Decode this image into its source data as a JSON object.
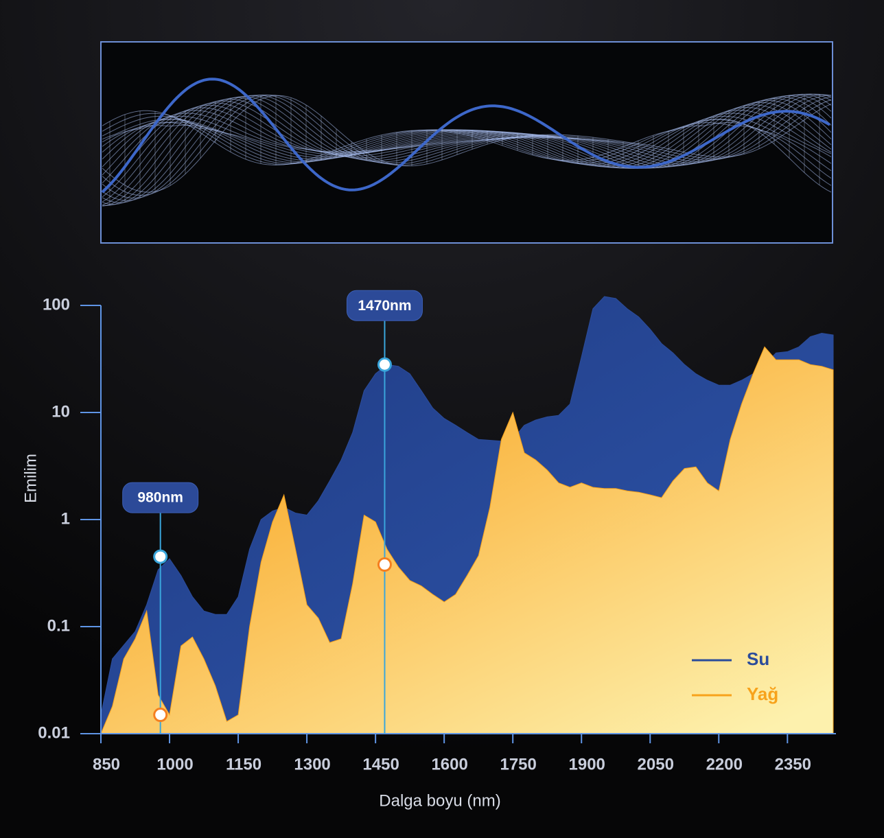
{
  "chart_data": {
    "type": "area",
    "y_label": "Emilim",
    "x_label": "Dalga boyu (nm)",
    "yscale": "log",
    "xlim": [
      850,
      2456
    ],
    "ylim": [
      0.01,
      100
    ],
    "xticks": [
      850,
      1000,
      1150,
      1300,
      1450,
      1600,
      1750,
      1900,
      2050,
      2200,
      2350
    ],
    "yticks": [
      100,
      10,
      1,
      0.1,
      0.01
    ],
    "legend": "bottom-right",
    "x": [
      850,
      875,
      900,
      925,
      950,
      975,
      1000,
      1025,
      1050,
      1075,
      1100,
      1125,
      1150,
      1175,
      1200,
      1225,
      1250,
      1275,
      1300,
      1325,
      1350,
      1375,
      1400,
      1425,
      1450,
      1475,
      1500,
      1525,
      1550,
      1575,
      1600,
      1625,
      1650,
      1675,
      1700,
      1725,
      1750,
      1775,
      1800,
      1825,
      1850,
      1875,
      1900,
      1925,
      1950,
      1975,
      2000,
      2025,
      2050,
      2075,
      2100,
      2125,
      2150,
      2175,
      2200,
      2225,
      2250,
      2275,
      2300,
      2325,
      2350,
      2375,
      2400,
      2425,
      2450
    ],
    "series": [
      {
        "name": "Su",
        "color": "#2b4c9b",
        "values": [
          0.015,
          0.05,
          0.067,
          0.09,
          0.16,
          0.34,
          0.43,
          0.3,
          0.19,
          0.14,
          0.13,
          0.13,
          0.19,
          0.53,
          1.0,
          1.2,
          1.3,
          1.15,
          1.1,
          1.5,
          2.3,
          3.6,
          6.5,
          16,
          23,
          28,
          27,
          23,
          16,
          11,
          8.8,
          7.6,
          6.5,
          5.6,
          5.5,
          5.4,
          5.6,
          7.6,
          8.5,
          9.1,
          9.4,
          12,
          33,
          93,
          121,
          116,
          93,
          78,
          60,
          44,
          36,
          28,
          23,
          20,
          18,
          18,
          20,
          23,
          28,
          36,
          37,
          41,
          51,
          55,
          53
        ]
      },
      {
        "name": "Yağ",
        "color": "#f7a21b",
        "values": [
          0.01,
          0.018,
          0.05,
          0.077,
          0.14,
          0.023,
          0.015,
          0.066,
          0.08,
          0.05,
          0.028,
          0.013,
          0.015,
          0.1,
          0.4,
          0.95,
          1.7,
          0.53,
          0.16,
          0.12,
          0.071,
          0.077,
          0.25,
          1.1,
          0.95,
          0.53,
          0.36,
          0.27,
          0.24,
          0.2,
          0.17,
          0.2,
          0.3,
          0.46,
          1.3,
          5.6,
          10,
          4.2,
          3.6,
          2.9,
          2.2,
          2.0,
          2.2,
          2.0,
          1.95,
          1.95,
          1.85,
          1.8,
          1.7,
          1.6,
          2.3,
          3.0,
          3.1,
          2.2,
          1.85,
          5.6,
          12,
          23,
          41,
          31,
          31,
          31,
          28,
          27,
          25
        ]
      }
    ],
    "annotations": [
      {
        "label": "980nm",
        "x": 980,
        "values": [
          0.45,
          0.015
        ]
      },
      {
        "label": "1470nm",
        "x": 1470,
        "values": [
          28,
          0.38
        ]
      }
    ]
  }
}
